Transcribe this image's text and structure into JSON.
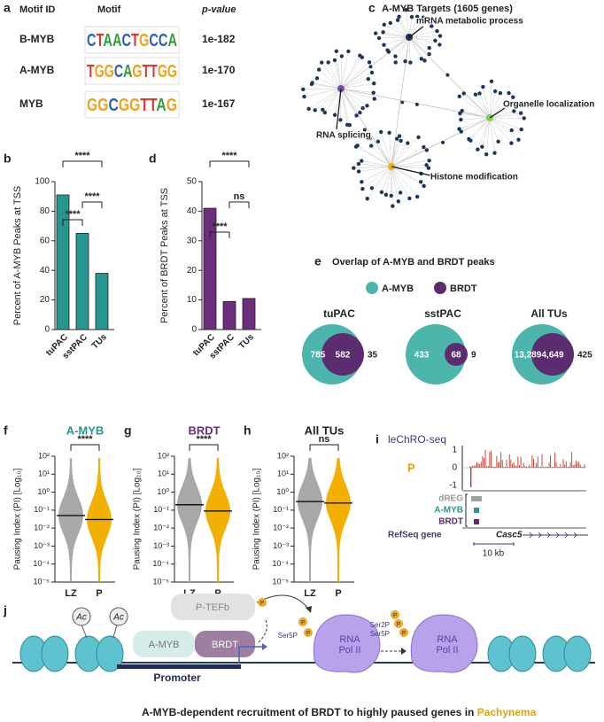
{
  "panel_labels": [
    "a",
    "b",
    "c",
    "d",
    "e",
    "f",
    "g",
    "h",
    "i",
    "j"
  ],
  "motif_table": {
    "headers": [
      "Motif ID",
      "Motif",
      "p-value"
    ],
    "rows": [
      [
        "B-MYB",
        "CTAACTGCCA",
        "1e-182"
      ],
      [
        "A-MYB",
        "TGGCAGTTGG",
        "1e-170"
      ],
      [
        "MYB",
        "GGCGGTTAG",
        "1e-167"
      ]
    ]
  },
  "network": {
    "title": "A-MYB Targets (1605 genes)",
    "labels": [
      "mRNA metabolic process",
      "Organelle localization",
      "RNA splicing",
      "Histone modification"
    ]
  },
  "chart_data": [
    {
      "type": "bar",
      "ylabel": "Percent of A-MYB Peaks at TSS",
      "categories": [
        "tuPAC",
        "sstPAC",
        "TUs"
      ],
      "values": [
        91,
        65,
        38
      ],
      "color": "#27968e",
      "ylim": [
        0,
        100
      ],
      "yticks": [
        0,
        20,
        40,
        60,
        80,
        100
      ],
      "significance": [
        "****",
        "****",
        "****"
      ]
    },
    {
      "type": "bar",
      "ylabel": "Percent of BRDT Peaks at TSS",
      "categories": [
        "tuPAC",
        "sstPAC",
        "TUs"
      ],
      "values": [
        41,
        9.5,
        10.5
      ],
      "color": "#6b2d7c",
      "ylim": [
        0,
        50
      ],
      "yticks": [
        0,
        10,
        20,
        30,
        40,
        50
      ],
      "significance": [
        "****",
        "ns",
        "****"
      ]
    },
    {
      "type": "violin",
      "title": "A-MYB",
      "title_color": "#27968e",
      "ylabel": "Pausing Index (PI) [Log₁₀]",
      "categories": [
        "LZ",
        "P"
      ],
      "colors": [
        "#a8a8a8",
        "#f2b100"
      ],
      "medians": [
        0.05,
        0.03
      ],
      "ylog": true,
      "ylim": [
        1e-05,
        100
      ],
      "yticks": [
        {
          "value": 100,
          "label": "10²"
        },
        {
          "value": 10,
          "label": "10¹"
        },
        {
          "value": 1,
          "label": "10⁰"
        },
        {
          "value": 0.1,
          "label": "10⁻¹"
        },
        {
          "value": 0.01,
          "label": "10⁻²"
        },
        {
          "value": 0.001,
          "label": "10⁻³"
        },
        {
          "value": 0.0001,
          "label": "10⁻⁴"
        },
        {
          "value": 1e-05,
          "label": "10⁻⁵"
        }
      ],
      "significance": "****"
    },
    {
      "type": "violin",
      "title": "BRDT",
      "title_color": "#6b2d7c",
      "ylabel": "Pausing Index (PI) [Log₁₀]",
      "categories": [
        "LZ",
        "P"
      ],
      "colors": [
        "#a8a8a8",
        "#f2b100"
      ],
      "medians": [
        0.2,
        0.09
      ],
      "ylog": true,
      "ylim": [
        1e-05,
        100
      ],
      "yticks": [
        {
          "value": 100,
          "label": "10²"
        },
        {
          "value": 10,
          "label": "10¹"
        },
        {
          "value": 1,
          "label": "10⁰"
        },
        {
          "value": 0.1,
          "label": "10⁻¹"
        },
        {
          "value": 0.01,
          "label": "10⁻²"
        },
        {
          "value": 0.001,
          "label": "10⁻³"
        },
        {
          "value": 0.0001,
          "label": "10⁻⁴"
        },
        {
          "value": 1e-05,
          "label": "10⁻⁵"
        }
      ],
      "significance": "****"
    },
    {
      "type": "violin",
      "title": "All TUs",
      "title_color": "#222222",
      "ylabel": "Pausing Index (PI) [Log₁₀]",
      "categories": [
        "LZ",
        "P"
      ],
      "colors": [
        "#a8a8a8",
        "#f2b100"
      ],
      "medians": [
        0.3,
        0.25
      ],
      "ylog": true,
      "ylim": [
        1e-05,
        100
      ],
      "yticks": [
        {
          "value": 100,
          "label": "10²"
        },
        {
          "value": 10,
          "label": "10¹"
        },
        {
          "value": 1,
          "label": "10⁰"
        },
        {
          "value": 0.1,
          "label": "10⁻¹"
        },
        {
          "value": 0.01,
          "label": "10⁻²"
        },
        {
          "value": 0.001,
          "label": "10⁻³"
        },
        {
          "value": 0.0001,
          "label": "10⁻⁴"
        },
        {
          "value": 1e-05,
          "label": "10⁻⁵"
        }
      ],
      "significance": "ns"
    }
  ],
  "venn": {
    "title": "Overlap of A-MYB and BRDT peaks",
    "legend": [
      {
        "name": "A-MYB",
        "color": "#4db6ac"
      },
      {
        "name": "BRDT",
        "color": "#5b2c6f"
      }
    ],
    "sets": [
      {
        "name": "tuPAC",
        "a_only": "785",
        "both": "582",
        "b_only": "35"
      },
      {
        "name": "sstPAC",
        "a_only": "433",
        "both": "68",
        "b_only": "9"
      },
      {
        "name": "All TUs",
        "a_only": "13,289",
        "both": "4,649",
        "b_only": "425"
      }
    ]
  },
  "browser": {
    "title": "leChRO-seq",
    "sample": "P",
    "yticks": [
      "1",
      "0",
      "-1"
    ],
    "tracks": [
      "dREG",
      "A-MYB",
      "BRDT"
    ],
    "gene_track": "RefSeq gene",
    "gene": "Casc5",
    "scale": "10 kb"
  },
  "diagram": {
    "acetyl": "Ac",
    "ptefb": "P-TEFb",
    "amyb": "A-MYB",
    "brdt": "BRDT",
    "promoter": "Promoter",
    "phospho": "P",
    "ser5p": "Ser5P",
    "ser2p": "Ser2P",
    "pol2": [
      "RNA",
      "Pol II"
    ],
    "caption": "A-MYB-dependent recruitment of BRDT to highly paused genes in ",
    "caption_stage": "Pachynema"
  }
}
